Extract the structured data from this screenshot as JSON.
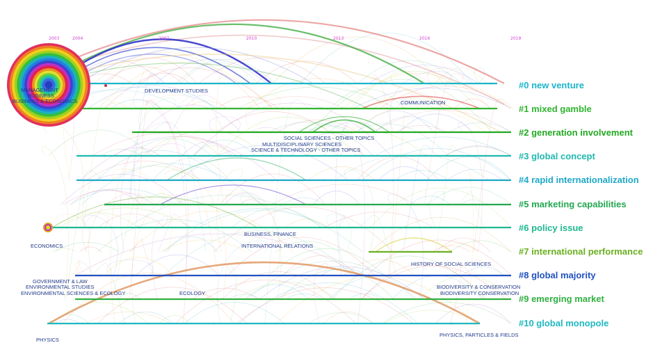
{
  "years": [
    "2003",
    "2004",
    "2007",
    "2010",
    "2013",
    "2016",
    "2019"
  ],
  "clusters": [
    {
      "label": "#0 new venture",
      "color": "#1bb5c9"
    },
    {
      "label": "#1 mixed gamble",
      "color": "#2fb52f"
    },
    {
      "label": "#2 generation involvement",
      "color": "#22a822"
    },
    {
      "label": "#3 global concept",
      "color": "#1eb8b0"
    },
    {
      "label": "#4 rapid internationalization",
      "color": "#1ea8c8"
    },
    {
      "label": "#5 marketing capabilities",
      "color": "#22a850"
    },
    {
      "label": "#6 policy issue",
      "color": "#1eb890"
    },
    {
      "label": "#7 international performance",
      "color": "#6ab020"
    },
    {
      "label": "#8 global majority",
      "color": "#2050c0"
    },
    {
      "label": "#9 emerging market",
      "color": "#30b040"
    },
    {
      "label": "#10 global monopole",
      "color": "#1eb8c0"
    }
  ],
  "categories": {
    "management": "MANAGEMENT",
    "business": "BUSINESS",
    "business_economics": "BUSINESS & ECONOMICS",
    "development_studies": "DEVELOPMENT STUDIES",
    "communication": "COMMUNICATION",
    "social_sciences_other": "SOCIAL SCIENCES - OTHER TOPICS",
    "multidisciplinary": "MULTIDISCIPLINARY SCIENCES",
    "science_technology_other": "SCIENCE & TECHNOLOGY - OTHER TOPICS",
    "economics": "ECONOMICS",
    "business_finance": "BUSINESS, FINANCE",
    "international_relations": "INTERNATIONAL RELATIONS",
    "history_social_sciences": "HISTORY OF SOCIAL SCIENCES",
    "government_law": "GOVERNMENT & LAW",
    "environmental_studies": "ENVIRONMENTAL STUDIES",
    "environmental_sciences_ecology": "ENVIRONMENTAL SCIENCES & ECOLOGY",
    "ecology": "ECOLOGY",
    "biodiversity_conservation_1": "BIODIVERSITY & CONSERVATION",
    "biodiversity_conservation_2": "BIODIVERSITY CONSERVATION",
    "physics": "PHYSICS",
    "physics_particles_fields": "PHYSICS, PARTICLES & FIELDS"
  }
}
